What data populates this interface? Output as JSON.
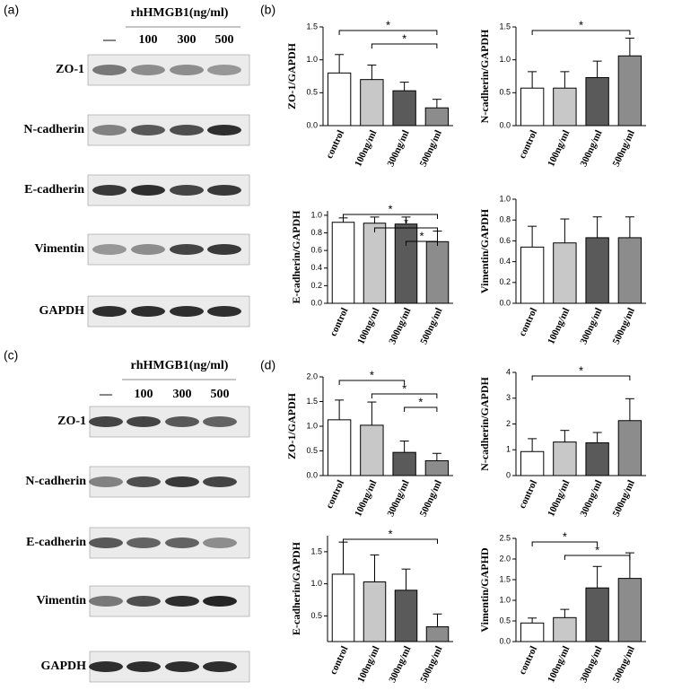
{
  "panels": {
    "a": "(a)",
    "b": "(b)",
    "c": "(c)",
    "d": "(d)"
  },
  "blots": [
    {
      "header": "rhHMGB1(ng/ml)",
      "lanes": [
        "—",
        "100",
        "300",
        "500"
      ],
      "rows": [
        "ZO-1",
        "N-cadherin",
        "E-cadherin",
        "Vimentin",
        "GAPDH"
      ]
    },
    {
      "header": "rhHMGB1(ng/ml)",
      "lanes": [
        "—",
        "100",
        "300",
        "500"
      ],
      "rows": [
        "ZO-1",
        "N-cadherin",
        "E-cadherin",
        "Vimentin",
        "GAPDH"
      ]
    }
  ],
  "chart_data": [
    {
      "type": "bar",
      "ylabel": "ZO-1/GAPDH",
      "categories": [
        "control",
        "100ng/ml",
        "300ng/ml",
        "500ng/ml"
      ],
      "colors": [
        "#ffffff",
        "#c8c8c8",
        "#5a5a5a",
        "#8c8c8c"
      ],
      "values": [
        0.8,
        0.7,
        0.53,
        0.27
      ],
      "errors": [
        0.28,
        0.22,
        0.13,
        0.13
      ],
      "ylim": [
        0,
        1.5
      ],
      "yticks": [
        {
          "value": 0,
          "label": "0.0"
        },
        0.5,
        {
          "value": 1,
          "label": "1.0"
        },
        1.5
      ],
      "significance": [
        {
          "from": 0,
          "to": 3,
          "label": "*"
        },
        {
          "from": 1,
          "to": 3,
          "label": "*"
        }
      ]
    },
    {
      "type": "bar",
      "ylabel": "N-cadherin/GAPDH",
      "categories": [
        "control",
        "100ng/ml",
        "300ng/ml",
        "500ng/ml"
      ],
      "colors": [
        "#ffffff",
        "#c8c8c8",
        "#5a5a5a",
        "#8c8c8c"
      ],
      "values": [
        0.57,
        0.57,
        0.73,
        1.06
      ],
      "errors": [
        0.25,
        0.25,
        0.25,
        0.27
      ],
      "ylim": [
        0,
        1.5
      ],
      "yticks": [
        {
          "value": 0,
          "label": "0.0"
        },
        0.5,
        {
          "value": 1,
          "label": "1.0"
        },
        1.5
      ],
      "significance": [
        {
          "from": 0,
          "to": 3,
          "label": "*"
        }
      ]
    },
    {
      "type": "bar",
      "ylabel": "E-cadherin/GAPDH",
      "categories": [
        "control",
        "100ng/ml",
        "300ng/ml",
        "500ng/ml"
      ],
      "colors": [
        "#ffffff",
        "#c8c8c8",
        "#5a5a5a",
        "#8c8c8c"
      ],
      "values": [
        0.92,
        0.91,
        0.9,
        0.7
      ],
      "errors": [
        0.05,
        0.07,
        0.08,
        0.12
      ],
      "ylim": [
        0,
        1.05
      ],
      "yticks": [
        {
          "value": 0,
          "label": "0.0"
        },
        0.2,
        0.4,
        0.6,
        0.8,
        {
          "value": 1,
          "label": "1.0"
        }
      ],
      "significance": [
        {
          "from": 0,
          "to": 3,
          "label": "*"
        },
        {
          "from": 1,
          "to": 3,
          "label": "*"
        },
        {
          "from": 2,
          "to": 3,
          "label": "*"
        }
      ]
    },
    {
      "type": "bar",
      "ylabel": "Vimentin/GAPDH",
      "categories": [
        "control",
        "100ng/ml",
        "300ng/ml",
        "500ng/ml"
      ],
      "colors": [
        "#ffffff",
        "#c8c8c8",
        "#5a5a5a",
        "#8c8c8c"
      ],
      "values": [
        0.54,
        0.58,
        0.63,
        0.63
      ],
      "errors": [
        0.2,
        0.23,
        0.2,
        0.2
      ],
      "ylim": [
        0,
        1
      ],
      "yticks": [
        {
          "value": 0,
          "label": "0.0"
        },
        0.2,
        0.4,
        0.6,
        0.8,
        {
          "value": 1,
          "label": "1.0"
        }
      ],
      "significance": []
    },
    {
      "type": "bar",
      "ylabel": "ZO-1/GAPDH",
      "categories": [
        "control",
        "100ng/ml",
        "300ng/ml",
        "500ng/ml"
      ],
      "colors": [
        "#ffffff",
        "#c8c8c8",
        "#5a5a5a",
        "#8c8c8c"
      ],
      "values": [
        1.13,
        1.02,
        0.47,
        0.3
      ],
      "errors": [
        0.4,
        0.47,
        0.23,
        0.15
      ],
      "ylim": [
        0,
        2
      ],
      "yticks": [
        {
          "value": 0,
          "label": "0.0"
        },
        0.5,
        {
          "value": 1,
          "label": "1.0"
        },
        1.5,
        {
          "value": 2,
          "label": "2.0"
        }
      ],
      "significance": [
        {
          "from": 0,
          "to": 2,
          "label": "*"
        },
        {
          "from": 1,
          "to": 3,
          "label": "*"
        },
        {
          "from": 2,
          "to": 3,
          "label": "*"
        }
      ]
    },
    {
      "type": "bar",
      "ylabel": "N-cadherin/GAPDH",
      "categories": [
        "control",
        "100ng/ml",
        "300ng/ml",
        "500ng/ml"
      ],
      "colors": [
        "#ffffff",
        "#c8c8c8",
        "#5a5a5a",
        "#8c8c8c"
      ],
      "values": [
        0.93,
        1.3,
        1.27,
        2.13
      ],
      "errors": [
        0.5,
        0.45,
        0.4,
        0.85
      ],
      "ylim": [
        0,
        4
      ],
      "yticks": [
        0,
        1,
        2,
        3,
        4
      ],
      "significance": [
        {
          "from": 0,
          "to": 3,
          "label": "*"
        }
      ]
    },
    {
      "type": "bar",
      "ylabel": "E-cadherin/GAPDH",
      "categories": [
        "control",
        "100ng/ml",
        "300ng/ml",
        "500ng/ml"
      ],
      "colors": [
        "#ffffff",
        "#c8c8c8",
        "#5a5a5a",
        "#8c8c8c"
      ],
      "values": [
        1.15,
        1.03,
        0.9,
        0.33
      ],
      "errors": [
        0.5,
        0.42,
        0.33,
        0.2
      ],
      "ylim": [
        0.1,
        1.75
      ],
      "yticks": [
        0.5,
        {
          "value": 1,
          "label": "1.0"
        },
        1.5
      ],
      "significance": [
        {
          "from": 0,
          "to": 3,
          "label": "*"
        }
      ]
    },
    {
      "type": "bar",
      "ylabel": "Vimentin/GAPHD",
      "categories": [
        "control",
        "100ng/ml",
        "300ng/ml",
        "500ng/ml"
      ],
      "colors": [
        "#ffffff",
        "#c8c8c8",
        "#5a5a5a",
        "#8c8c8c"
      ],
      "values": [
        0.45,
        0.58,
        1.3,
        1.53
      ],
      "errors": [
        0.12,
        0.2,
        0.52,
        0.62
      ],
      "ylim": [
        0,
        2.5
      ],
      "yticks": [
        {
          "value": 0,
          "label": "0.0"
        },
        0.5,
        {
          "value": 1,
          "label": "1.0"
        },
        1.5,
        {
          "value": 2,
          "label": "2.0"
        },
        2.5
      ],
      "significance": [
        {
          "from": 0,
          "to": 2,
          "label": "*"
        },
        {
          "from": 1,
          "to": 3,
          "label": "*"
        }
      ]
    }
  ]
}
